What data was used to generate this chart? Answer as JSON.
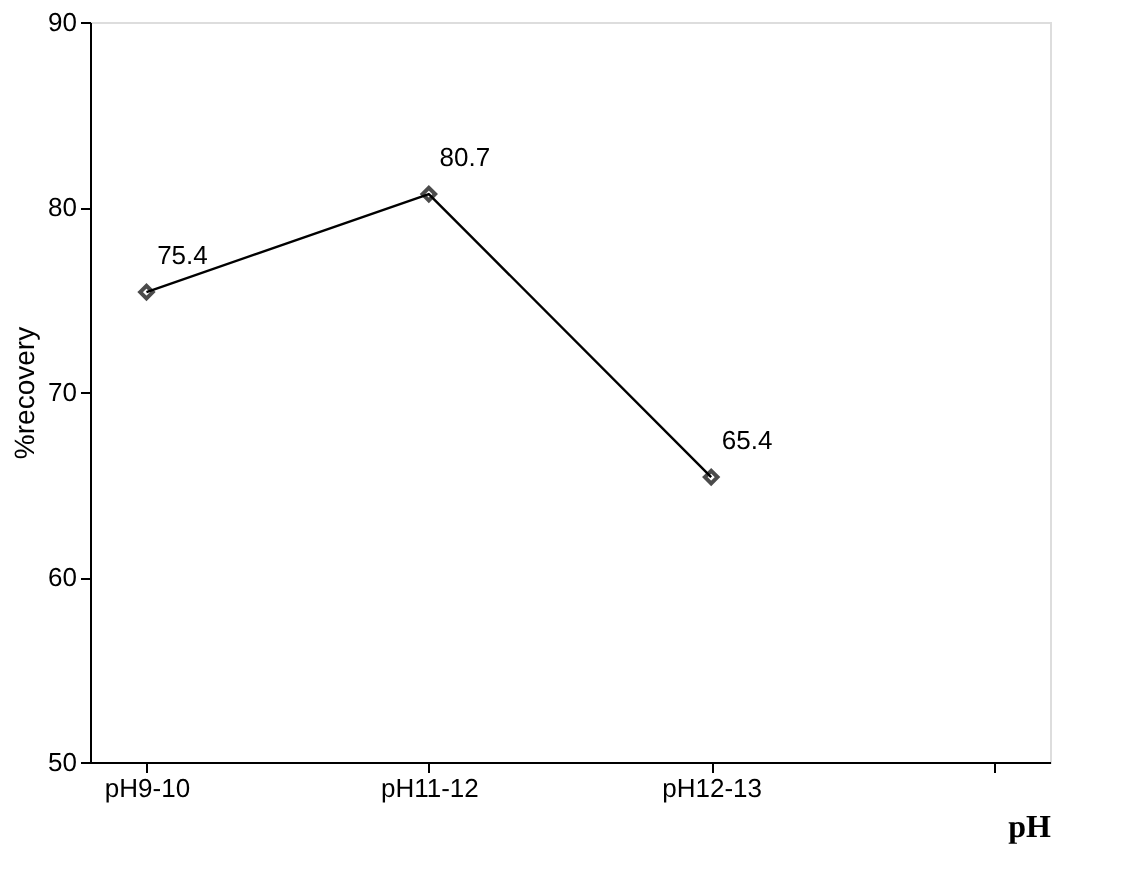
{
  "chart_data": {
    "type": "line",
    "xlabel": "pH",
    "ylabel": "%recovery",
    "categories": [
      "pH9-10",
      "pH11-12",
      "pH12-13",
      null
    ],
    "series": [
      {
        "color": "#000000",
        "values": [
          75.4,
          80.7,
          65.4,
          null
        ]
      }
    ],
    "ylim": [
      50,
      90
    ],
    "yticks": [
      50,
      60,
      70,
      80,
      90
    ],
    "grid": false,
    "marker": "diamond",
    "line_style": "solid",
    "data_labels": true
  }
}
